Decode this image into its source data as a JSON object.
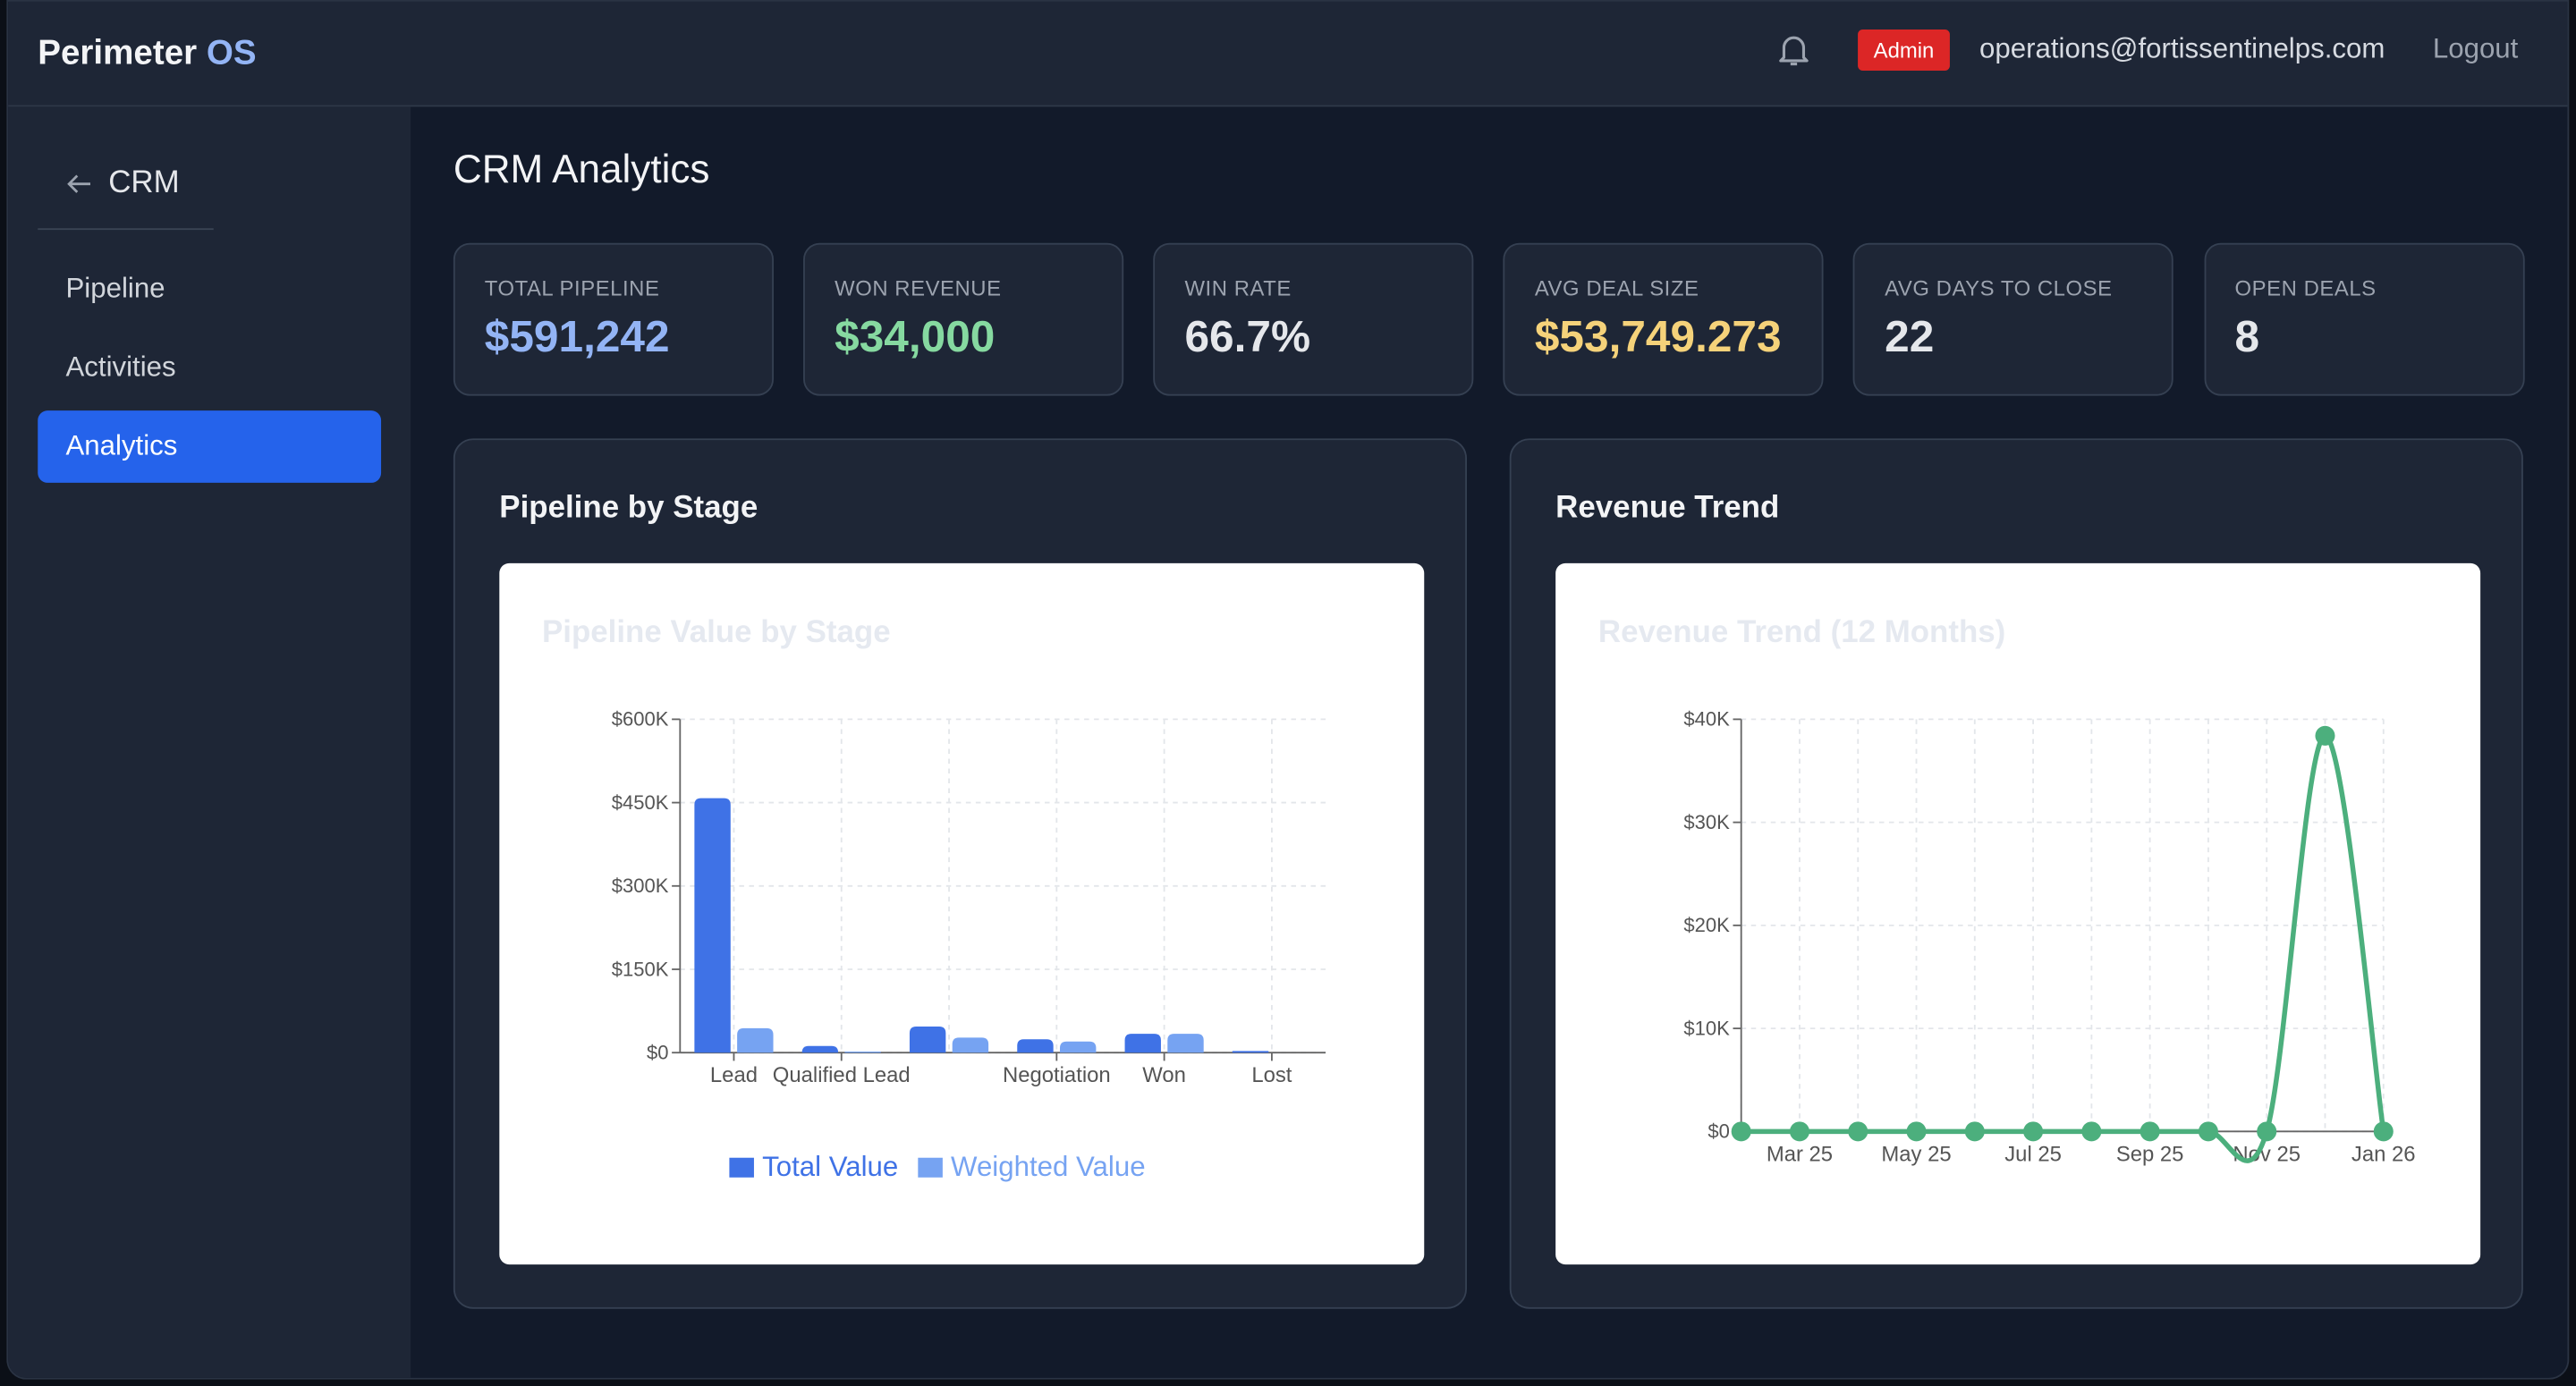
{
  "header": {
    "brand": "Perimeter",
    "brand_accent": "OS",
    "role_badge": "Admin",
    "email": "operations@fortissentinelps.com",
    "logout": "Logout"
  },
  "sidebar": {
    "back_label": "CRM",
    "items": [
      "Pipeline",
      "Activities",
      "Analytics"
    ],
    "active_item": 2
  },
  "page_title": "CRM Analytics",
  "kpis": [
    {
      "label": "TOTAL PIPELINE",
      "value": "$591,242"
    },
    {
      "label": "WON REVENUE",
      "value": "$34,000"
    },
    {
      "label": "WIN RATE",
      "value": "66.7%"
    },
    {
      "label": "AVG DEAL SIZE",
      "value": "$53,749.273"
    },
    {
      "label": "AVG DAYS TO CLOSE",
      "value": "22"
    },
    {
      "label": "OPEN DEALS",
      "value": "8"
    }
  ],
  "chart_data": [
    {
      "type": "bar",
      "card_title": "Pipeline by Stage",
      "title": "Pipeline Value by Stage",
      "categories": [
        "Lead",
        "Qualified Lead",
        null,
        "Negotiation",
        "Won",
        "Lost"
      ],
      "series": [
        {
          "name": "Total Value",
          "color": "#3f72e6",
          "values": [
            458000,
            12000,
            47000,
            24000,
            34000,
            3000
          ]
        },
        {
          "name": "Weighted Value",
          "color": "#76a3f2",
          "values": [
            44000,
            2000,
            27000,
            20000,
            34000,
            0
          ]
        }
      ],
      "ylim": [
        0,
        600000
      ],
      "yticks": [
        {
          "value": 0,
          "label": "$0"
        },
        {
          "value": 150000,
          "label": "$150K"
        },
        {
          "value": 300000,
          "label": "$300K"
        },
        {
          "value": 450000,
          "label": "$450K"
        },
        {
          "value": 600000,
          "label": "$600K"
        }
      ],
      "grid": true,
      "legend": "bottom"
    },
    {
      "type": "line",
      "card_title": "Revenue Trend",
      "title": "Revenue Trend (12 Months)",
      "categories": [
        null,
        "Mar 25",
        null,
        "May 25",
        null,
        "Jul 25",
        null,
        "Sep 25",
        null,
        "Nov 25",
        null,
        "Jan 26"
      ],
      "values": [
        0,
        0,
        0,
        0,
        0,
        0,
        0,
        0,
        0,
        0,
        38400,
        0
      ],
      "color": "#4caf7d",
      "ylim": [
        0,
        40000
      ],
      "yticks": [
        {
          "value": 0,
          "label": "$0"
        },
        {
          "value": 10000,
          "label": "$10K"
        },
        {
          "value": 20000,
          "label": "$20K"
        },
        {
          "value": 30000,
          "label": "$30K"
        },
        {
          "value": 40000,
          "label": "$40K"
        }
      ],
      "grid": true
    }
  ]
}
